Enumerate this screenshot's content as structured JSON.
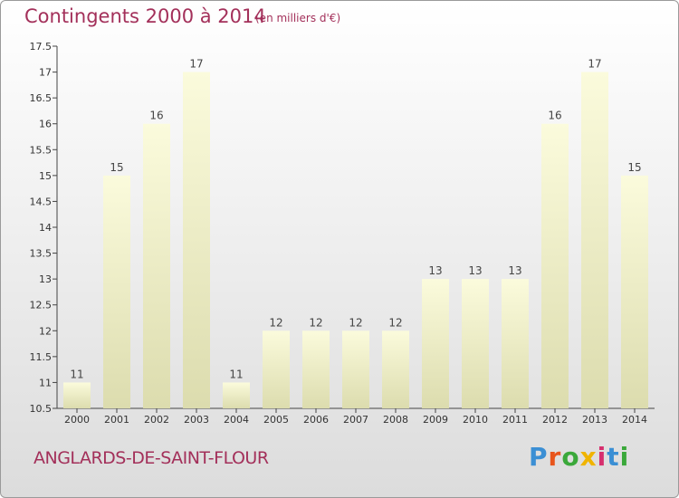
{
  "header": {
    "title": "Contingents 2000 à 2014",
    "subtitle": "(en milliers d'€)"
  },
  "footer": {
    "commune": "ANGLARDS-DE-SAINT-FLOUR",
    "logo_text": "Proxiti",
    "logo_colors": [
      "#3b8fd4",
      "#e8551c",
      "#3aa83a",
      "#f0b400",
      "#d62f6e",
      "#3b8fd4",
      "#3aa83a"
    ]
  },
  "chart_data": {
    "type": "bar",
    "title": "Contingents 2000 à 2014",
    "subtitle": "(en milliers d'€)",
    "categories": [
      "2000",
      "2001",
      "2002",
      "2003",
      "2004",
      "2005",
      "2006",
      "2007",
      "2008",
      "2009",
      "2010",
      "2011",
      "2012",
      "2013",
      "2014"
    ],
    "values": [
      11,
      15,
      16,
      17,
      11,
      12,
      12,
      12,
      12,
      13,
      13,
      13,
      16,
      17,
      15
    ],
    "ylim": [
      10.5,
      17.5
    ],
    "yticks": [
      10.5,
      11,
      11.5,
      12,
      12.5,
      13,
      13.5,
      14,
      14.5,
      15,
      15.5,
      16,
      16.5,
      17,
      17.5
    ],
    "grid": false,
    "legend": "none",
    "bar_color_top": "#fbfbdc",
    "bar_color_bottom": "#dcdcae"
  }
}
